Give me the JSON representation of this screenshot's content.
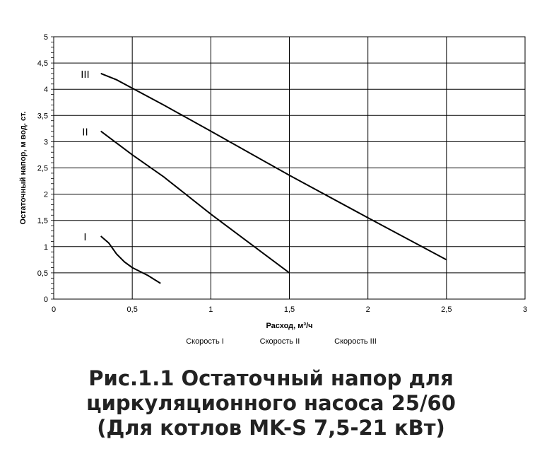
{
  "chart_data": {
    "type": "line",
    "xlabel": "Расход, м³/ч",
    "ylabel": "Остаточный напор, м вод. ст.",
    "xlim": [
      0,
      3
    ],
    "ylim": [
      0,
      5
    ],
    "xticks": [
      "0",
      "0,5",
      "1",
      "1,5",
      "2",
      "2,5",
      "3"
    ],
    "yticks": [
      "0",
      "0,5",
      "1",
      "1,5",
      "2",
      "2,5",
      "3",
      "3,5",
      "4",
      "4,5",
      "5"
    ],
    "grid": true,
    "legend_position": "bottom",
    "legend": [
      "Скорость I",
      "Скорость II",
      "Скорость III"
    ],
    "series": [
      {
        "name": "I",
        "x": [
          0.3,
          0.35,
          0.4,
          0.45,
          0.5,
          0.6,
          0.68
        ],
        "y": [
          1.2,
          1.07,
          0.86,
          0.71,
          0.6,
          0.45,
          0.3
        ]
      },
      {
        "name": "II",
        "x": [
          0.3,
          0.5,
          0.7,
          1.0,
          1.5
        ],
        "y": [
          3.2,
          2.75,
          2.33,
          1.62,
          0.5
        ]
      },
      {
        "name": "III",
        "x": [
          0.3,
          0.4,
          0.5,
          0.7,
          1.0,
          1.5,
          2.0,
          2.5
        ],
        "y": [
          4.3,
          4.18,
          4.02,
          3.7,
          3.2,
          2.36,
          1.55,
          0.75
        ]
      }
    ],
    "line_color": "#000000"
  },
  "caption": {
    "line1": "Рис.1.1 Остаточный напор для",
    "line2": "циркуляционного насоса 25/60",
    "line3": "(Для котлов MK-S 7,5-21 кВт)"
  }
}
